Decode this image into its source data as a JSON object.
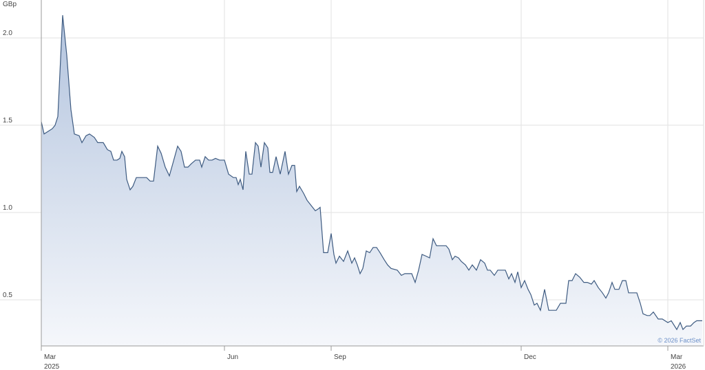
{
  "chart_data": {
    "type": "area",
    "y_unit": "GBp",
    "credit": "© 2026 FactSet",
    "color": "#3d5a80",
    "grid": true,
    "x": [
      0,
      4,
      8,
      16,
      20,
      24,
      31,
      37,
      43,
      48,
      55,
      59,
      65,
      70,
      77,
      82,
      90,
      96,
      101,
      105,
      110,
      114,
      117,
      121,
      124,
      129,
      133,
      138,
      153,
      158,
      163,
      169,
      174,
      180,
      186,
      191,
      198,
      203,
      208,
      213,
      218,
      224,
      230,
      233,
      238,
      243,
      248,
      253,
      259,
      266,
      272,
      279,
      283,
      286,
      289,
      293,
      297,
      302,
      306,
      311,
      315,
      319,
      324,
      329,
      332,
      336,
      341,
      347,
      354,
      359,
      364,
      368,
      371,
      375,
      378,
      381,
      386,
      392,
      398,
      402,
      405,
      410,
      416,
      421,
      425,
      428,
      433,
      439,
      445,
      451,
      455,
      459,
      463,
      467,
      472,
      477,
      482,
      487,
      492,
      498,
      503,
      508,
      517,
      523,
      528,
      538,
      543,
      548,
      553,
      559,
      564,
      569,
      574,
      588,
      592,
      597,
      601,
      606,
      610,
      616,
      621,
      626,
      632,
      638,
      644,
      648,
      652,
      658,
      663,
      674,
      679,
      683,
      688,
      692,
      697,
      702,
      707,
      711,
      716,
      720,
      725,
      731,
      737,
      748,
      754,
      760,
      762,
      766,
      771,
      776,
      782,
      788,
      793,
      799,
      803,
      809,
      815,
      820,
      824,
      829,
      833,
      839,
      844,
      849,
      853,
      858,
      865,
      870,
      874,
      880,
      884,
      889,
      896,
      902,
      910,
      915,
      923,
      928,
      932,
      937,
      943,
      948,
      952,
      960
    ],
    "values": [
      1.52,
      1.45,
      1.46,
      1.48,
      1.5,
      1.55,
      2.13,
      1.9,
      1.59,
      1.45,
      1.44,
      1.4,
      1.44,
      1.45,
      1.43,
      1.4,
      1.4,
      1.36,
      1.35,
      1.3,
      1.3,
      1.31,
      1.35,
      1.32,
      1.19,
      1.13,
      1.15,
      1.2,
      1.2,
      1.18,
      1.18,
      1.38,
      1.34,
      1.26,
      1.21,
      1.28,
      1.38,
      1.35,
      1.26,
      1.26,
      1.28,
      1.3,
      1.3,
      1.26,
      1.32,
      1.3,
      1.3,
      1.31,
      1.3,
      1.3,
      1.22,
      1.2,
      1.2,
      1.16,
      1.19,
      1.13,
      1.35,
      1.22,
      1.22,
      1.4,
      1.38,
      1.26,
      1.4,
      1.37,
      1.23,
      1.23,
      1.32,
      1.22,
      1.35,
      1.22,
      1.27,
      1.27,
      1.12,
      1.15,
      1.13,
      1.11,
      1.07,
      1.04,
      1.01,
      1.02,
      1.03,
      0.77,
      0.77,
      0.88,
      0.76,
      0.71,
      0.75,
      0.72,
      0.78,
      0.71,
      0.74,
      0.7,
      0.65,
      0.68,
      0.78,
      0.77,
      0.8,
      0.8,
      0.77,
      0.73,
      0.7,
      0.68,
      0.67,
      0.64,
      0.65,
      0.65,
      0.6,
      0.67,
      0.76,
      0.75,
      0.74,
      0.85,
      0.81,
      0.81,
      0.79,
      0.73,
      0.75,
      0.74,
      0.72,
      0.7,
      0.67,
      0.7,
      0.67,
      0.73,
      0.71,
      0.67,
      0.67,
      0.64,
      0.67,
      0.67,
      0.62,
      0.65,
      0.6,
      0.66,
      0.57,
      0.61,
      0.56,
      0.53,
      0.47,
      0.48,
      0.44,
      0.56,
      0.44,
      0.44,
      0.48,
      0.48,
      0.48,
      0.61,
      0.61,
      0.65,
      0.63,
      0.6,
      0.6,
      0.59,
      0.61,
      0.57,
      0.54,
      0.51,
      0.54,
      0.6,
      0.56,
      0.56,
      0.61,
      0.61,
      0.54,
      0.54,
      0.54,
      0.48,
      0.42,
      0.41,
      0.41,
      0.43,
      0.39,
      0.39,
      0.37,
      0.38,
      0.33,
      0.37,
      0.33,
      0.35,
      0.35,
      0.37,
      0.38,
      0.38
    ],
    "xlim": [
      0,
      962
    ],
    "xticks": [
      {
        "value": 0,
        "label": "Mar"
      },
      {
        "value": 266,
        "label": "Jun"
      },
      {
        "value": 421,
        "label": "Sep"
      },
      {
        "value": 697,
        "label": "Dec"
      },
      {
        "value": 910,
        "label": "Mar"
      }
    ],
    "xtick_years": [
      {
        "value": 0,
        "label": "2025"
      },
      {
        "value": 910,
        "label": "2026"
      }
    ],
    "ylim": [
      0.236,
      2.217
    ],
    "yticks": [
      {
        "value": 0.5,
        "label": "0.5"
      },
      {
        "value": 1,
        "label": "1.0"
      },
      {
        "value": 1.5,
        "label": "1.5"
      },
      {
        "value": 2,
        "label": "2.0"
      }
    ]
  }
}
